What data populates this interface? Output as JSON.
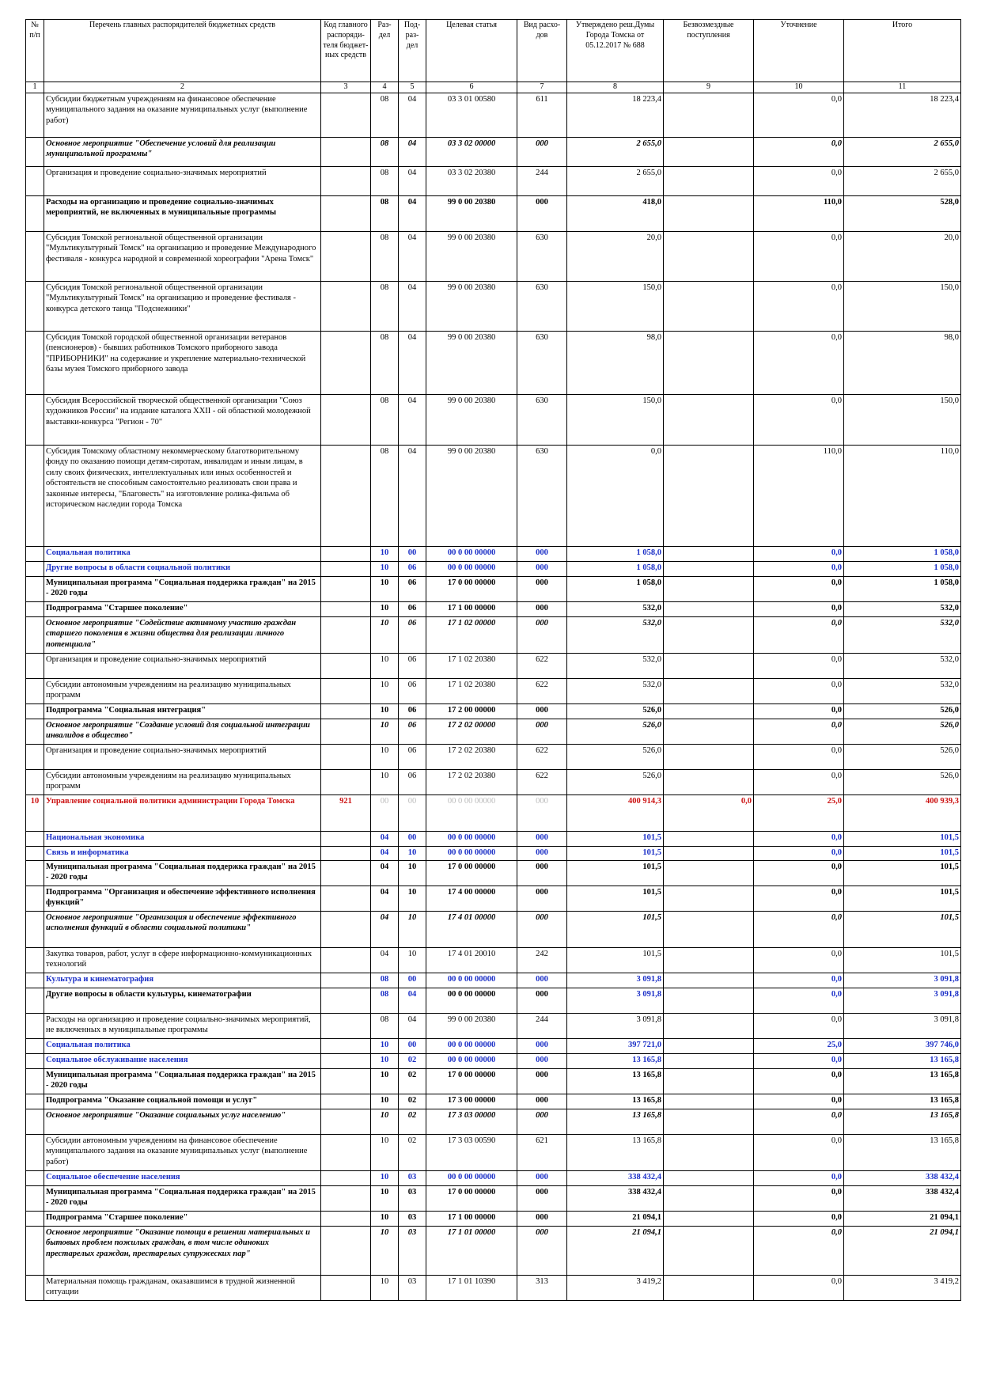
{
  "header": {
    "col1": "№ п/п",
    "col2": "Перечень главных распорядителей бюджетных средств",
    "col3": "Код главного распоряди-теля бюджет-ных средств",
    "col4": "Раз-дел",
    "col5": "Под-раз-дел",
    "col6": "Целевая статья",
    "col7": "Вид расхо-дов",
    "col8": "Утверждено реш.Думы Города Томска от 05.12.2017 № 688",
    "col9": "Безвозмездные поступления",
    "col10": "Уточнение",
    "col11": "Итого"
  },
  "col_numbers": [
    "1",
    "2",
    "3",
    "4",
    "5",
    "6",
    "7",
    "8",
    "9",
    "10",
    "11"
  ],
  "rows": [
    {
      "style": "normal",
      "h": 56,
      "num": "",
      "name": "Субсидии бюджетным учреждениям на финансовое обеспечение муниципального задания на оказание муниципальных услуг (выполнение работ)",
      "code": "",
      "razdel": "08",
      "podrazdel": "04",
      "cs": "03 3 01 00580",
      "vr": "611",
      "approved": "18 223,4",
      "free": "",
      "correction": "0,0",
      "total": "18 223,4"
    },
    {
      "style": "bolditalic",
      "h": 37,
      "num": "",
      "name": "Основное мероприятие \"Обеспечение условий для реализации муниципальной программы\"",
      "code": "",
      "razdel": "08",
      "podrazdel": "04",
      "cs": "03 3 02 00000",
      "vr": "000",
      "approved": "2 655,0",
      "free": "",
      "correction": "0,0",
      "total": "2 655,0"
    },
    {
      "style": "normal",
      "h": 37,
      "num": "",
      "name": "Организация и проведение социально-значимых мероприятий",
      "code": "",
      "razdel": "08",
      "podrazdel": "04",
      "cs": "03 3 02 20380",
      "vr": "244",
      "approved": "2 655,0",
      "free": "",
      "correction": "0,0",
      "total": "2 655,0"
    },
    {
      "style": "bold",
      "h": 45,
      "num": "",
      "name": "Расходы на организацию и проведение социально-значимых мероприятий, не включенных в муниципальные программы",
      "code": "",
      "razdel": "08",
      "podrazdel": "04",
      "cs": "99 0 00 20380",
      "vr": "000",
      "approved": "418,0",
      "free": "",
      "correction": "110,0",
      "total": "528,0"
    },
    {
      "style": "normal",
      "h": 63,
      "num": "",
      "name": "Субсидия Томской региональной общественной организации \"Мультикультурный Томск\" на организацию и проведение Международного фестиваля - конкурса народной и современной хореографии \"Арена Томск\"",
      "code": "",
      "razdel": "08",
      "podrazdel": "04",
      "cs": "99 0 00 20380",
      "vr": "630",
      "approved": "20,0",
      "free": "",
      "correction": "0,0",
      "total": "20,0"
    },
    {
      "style": "normal",
      "h": 63,
      "num": "",
      "name": "Субсидия Томской региональной общественной организации \"Мультикультурный Томск\" на организацию и проведение фестиваля - конкурса детского танца \"Подснежники\"",
      "code": "",
      "razdel": "08",
      "podrazdel": "04",
      "cs": "99 0 00 20380",
      "vr": "630",
      "approved": "150,0",
      "free": "",
      "correction": "0,0",
      "total": "150,0"
    },
    {
      "style": "normal",
      "h": 80,
      "num": "",
      "name": "Субсидия Томской городской общественной организации ветеранов (пенсионеров) - бывших работников Томского приборного завода \"ПРИБОРНИКИ\" на содержание и укрепление материально-технической базы музея Томского приборного завода",
      "code": "",
      "razdel": "08",
      "podrazdel": "04",
      "cs": "99 0 00 20380",
      "vr": "630",
      "approved": "98,0",
      "free": "",
      "correction": "0,0",
      "total": "98,0"
    },
    {
      "style": "normal",
      "h": 64,
      "num": "",
      "name": "Субсидия Всероссийской творческой общественной организации \"Союз художников России\" на издание каталога XXII - ой областной молодежной выставки-конкурса \"Регион - 70\"",
      "code": "",
      "razdel": "08",
      "podrazdel": "04",
      "cs": "99 0 00 20380",
      "vr": "630",
      "approved": "150,0",
      "free": "",
      "correction": "0,0",
      "total": "150,0"
    },
    {
      "style": "normal",
      "h": 128,
      "num": "",
      "name": "Субсидия Томскому областному некоммерческому благотворительному фонду по оказанию помощи детям-сиротам, инвалидам и иным лицам, в силу своих физических, интеллектуальных или иных особенностей и обстоятельств не способным самостоятельно реализовать свои права и законные интересы, \"Благовесть\" на изготовление ролика-фильма об историческом наследии города Томска",
      "code": "",
      "razdel": "08",
      "podrazdel": "04",
      "cs": "99 0 00 20380",
      "vr": "630",
      "approved": "0,0",
      "free": "",
      "correction": "110,0",
      "total": "110,0"
    },
    {
      "style": "blue",
      "h": 19,
      "num": "",
      "name": "Социальная политика",
      "code": "",
      "razdel": "10",
      "podrazdel": "00",
      "cs": "00 0 00 00000",
      "vr": "000",
      "approved": "1 058,0",
      "free": "",
      "correction": "0,0",
      "total": "1 058,0"
    },
    {
      "style": "blue",
      "h": 19,
      "num": "",
      "name": "Другие вопросы в области социальной политики",
      "code": "",
      "razdel": "10",
      "podrazdel": "06",
      "cs": "00 0 00 00000",
      "vr": "000",
      "approved": "1 058,0",
      "free": "",
      "correction": "0,0",
      "total": "1 058,0"
    },
    {
      "style": "bold boldbig",
      "h": 32,
      "num": "",
      "name": "Муниципальная программа \"Социальная поддержка граждан\" на 2015 - 2020 годы",
      "code": "",
      "razdel": "10",
      "podrazdel": "06",
      "cs": "17 0 00 00000",
      "vr": "000",
      "approved": "1 058,0",
      "free": "",
      "correction": "0,0",
      "total": "1 058,0"
    },
    {
      "style": "bold boldbig",
      "h": 19,
      "num": "",
      "name": "Подпрограмма \"Старшее поколение\"",
      "code": "",
      "razdel": "10",
      "podrazdel": "06",
      "cs": "17 1 00 00000",
      "vr": "000",
      "approved": "532,0",
      "free": "",
      "correction": "0,0",
      "total": "532,0"
    },
    {
      "style": "bolditalic",
      "h": 46,
      "num": "",
      "name": "Основное мероприятие \"Содействие активному участию граждан старшего поколения в жизни общества для реализации личного потенциала\"",
      "code": "",
      "razdel": "10",
      "podrazdel": "06",
      "cs": "17 1 02 00000",
      "vr": "000",
      "approved": "532,0",
      "free": "",
      "correction": "0,0",
      "total": "532,0"
    },
    {
      "style": "normal",
      "h": 32,
      "num": "",
      "name": "Организация и проведение социально-значимых мероприятий",
      "code": "",
      "razdel": "10",
      "podrazdel": "06",
      "cs": "17 1 02 20380",
      "vr": "622",
      "approved": "532,0",
      "free": "",
      "correction": "0,0",
      "total": "532,0"
    },
    {
      "style": "normal",
      "h": 32,
      "num": "",
      "name": "Субсидии автономным учреждениям на реализацию муниципальных программ",
      "code": "",
      "razdel": "10",
      "podrazdel": "06",
      "cs": "17 1 02 20380",
      "vr": "622",
      "approved": "532,0",
      "free": "",
      "correction": "0,0",
      "total": "532,0"
    },
    {
      "style": "bold boldbig",
      "h": 19,
      "num": "",
      "name": "Подпрограмма \"Социальная интеграция\"",
      "code": "",
      "razdel": "10",
      "podrazdel": "06",
      "cs": "17 2 00 00000",
      "vr": "000",
      "approved": "526,0",
      "free": "",
      "correction": "0,0",
      "total": "526,0"
    },
    {
      "style": "bolditalic",
      "h": 32,
      "num": "",
      "name": "Основное мероприятие \"Создание условий для социальной интеграции инвалидов в общество\"",
      "code": "",
      "razdel": "10",
      "podrazdel": "06",
      "cs": "17 2 02 00000",
      "vr": "000",
      "approved": "526,0",
      "free": "",
      "correction": "0,0",
      "total": "526,0"
    },
    {
      "style": "normal",
      "h": 32,
      "num": "",
      "name": "Организация и проведение социально-значимых мероприятий",
      "code": "",
      "razdel": "10",
      "podrazdel": "06",
      "cs": "17 2 02 20380",
      "vr": "622",
      "approved": "526,0",
      "free": "",
      "correction": "0,0",
      "total": "526,0"
    },
    {
      "style": "normal",
      "h": 32,
      "num": "",
      "name": "Субсидии автономным учреждениям на реализацию муниципальных программ",
      "code": "",
      "razdel": "10",
      "podrazdel": "06",
      "cs": "17 2 02 20380",
      "vr": "622",
      "approved": "526,0",
      "free": "",
      "correction": "0,0",
      "total": "526,0"
    },
    {
      "style": "red",
      "h": 46,
      "num": "10",
      "name": "Управление социальной политики администрации Города Томска",
      "code": "921",
      "razdel": "00",
      "podrazdel": "00",
      "cs": "00 0 00 00000",
      "vr": "000",
      "approved": "400 914,3",
      "free": "0,0",
      "correction": "25,0",
      "total": "400 939,3"
    },
    {
      "style": "blue",
      "h": 19,
      "num": "",
      "name": "Национальная экономика",
      "code": "",
      "razdel": "04",
      "podrazdel": "00",
      "cs": "00 0 00 00000",
      "vr": "000",
      "approved": "101,5",
      "free": "",
      "correction": "0,0",
      "total": "101,5"
    },
    {
      "style": "blue bluesmall",
      "h": 18,
      "num": "",
      "name": "Связь и информатика",
      "code": "",
      "razdel": "04",
      "podrazdel": "10",
      "cs": "00 0 00 00000",
      "vr": "000",
      "approved": "101,5",
      "free": "",
      "correction": "0,0",
      "total": "101,5"
    },
    {
      "style": "bold",
      "h": 32,
      "num": "",
      "name": "Муниципальная программа \"Социальная поддержка граждан\" на 2015 - 2020 годы",
      "code": "",
      "razdel": "04",
      "podrazdel": "10",
      "cs": "17 0 00 00000",
      "vr": "000",
      "approved": "101,5",
      "free": "",
      "correction": "0,0",
      "total": "101,5"
    },
    {
      "style": "bold",
      "h": 32,
      "num": "",
      "name": "Подпрограмма \"Организация и обеспечение эффективного исполнения функций\"",
      "code": "",
      "razdel": "04",
      "podrazdel": "10",
      "cs": "17 4 00 00000",
      "vr": "000",
      "approved": "101,5",
      "free": "",
      "correction": "0,0",
      "total": "101,5"
    },
    {
      "style": "bolditalic",
      "h": 46,
      "num": "",
      "name": "Основное мероприятие \"Организация и обеспечение эффективного исполнения функций в области социальной политики\"",
      "code": "",
      "razdel": "04",
      "podrazdel": "10",
      "cs": "17 4 01 00000",
      "vr": "000",
      "approved": "101,5",
      "free": "",
      "correction": "0,0",
      "total": "101,5"
    },
    {
      "style": "normal",
      "h": 32,
      "num": "",
      "name": "Закупка товаров, работ, услуг в сфере информационно-коммуникационных технологий",
      "code": "",
      "razdel": "04",
      "podrazdel": "10",
      "cs": "17 4 01 20010",
      "vr": "242",
      "approved": "101,5",
      "free": "",
      "correction": "0,0",
      "total": "101,5"
    },
    {
      "style": "blue",
      "h": 19,
      "num": "",
      "name": "Культура и кинематография",
      "code": "",
      "razdel": "08",
      "podrazdel": "00",
      "cs": "00 0 00 00000",
      "vr": "000",
      "approved": "3 091,8",
      "free": "",
      "correction": "0,0",
      "total": "3 091,8"
    },
    {
      "style": "bold boldbig bluenums",
      "h": 32,
      "num": "",
      "name": "Другие вопросы в области культуры, кинематографии",
      "code": "",
      "razdel": "08",
      "podrazdel": "04",
      "cs": "00 0 00 00000",
      "vr": "000",
      "approved": "3 091,8",
      "free": "",
      "correction": "0,0",
      "total": "3 091,8"
    },
    {
      "style": "normal",
      "h": 32,
      "num": "",
      "name": "Расходы на организацию и проведение социально-значимых мероприятий, не включенных в муниципальные программы",
      "code": "",
      "razdel": "08",
      "podrazdel": "04",
      "cs": "99 0 00 20380",
      "vr": "244",
      "approved": "3 091,8",
      "free": "",
      "correction": "0,0",
      "total": "3 091,8"
    },
    {
      "style": "blue",
      "h": 19,
      "num": "",
      "name": "Социальная политика",
      "code": "",
      "razdel": "10",
      "podrazdel": "00",
      "cs": "00 0 00 00000",
      "vr": "000",
      "approved": "397 721,0",
      "free": "",
      "correction": "25,0",
      "total": "397 746,0"
    },
    {
      "style": "blue",
      "h": 19,
      "num": "",
      "name": "Социальное обслуживание населения",
      "code": "",
      "razdel": "10",
      "podrazdel": "02",
      "cs": "00 0 00 00000",
      "vr": "000",
      "approved": "13 165,8",
      "free": "",
      "correction": "0,0",
      "total": "13 165,8"
    },
    {
      "style": "bold boldbig",
      "h": 32,
      "num": "",
      "name": "Муниципальная программа \"Социальная поддержка граждан\" на 2015 - 2020 годы",
      "code": "",
      "razdel": "10",
      "podrazdel": "02",
      "cs": "17 0 00 00000",
      "vr": "000",
      "approved": "13 165,8",
      "free": "",
      "correction": "0,0",
      "total": "13 165,8"
    },
    {
      "style": "bold",
      "h": 19,
      "num": "",
      "name": "Подпрограмма \"Оказание социальной помощи и услуг\"",
      "code": "",
      "razdel": "10",
      "podrazdel": "02",
      "cs": "17 3 00 00000",
      "vr": "000",
      "approved": "13 165,8",
      "free": "",
      "correction": "0,0",
      "total": "13 165,8"
    },
    {
      "style": "bolditalic",
      "h": 32,
      "num": "",
      "name": "Основное мероприятие \"Оказание социальных услуг населению\"",
      "code": "",
      "razdel": "10",
      "podrazdel": "02",
      "cs": "17 3 03 00000",
      "vr": "000",
      "approved": "13 165,8",
      "free": "",
      "correction": "0,0",
      "total": "13 165,8"
    },
    {
      "style": "normal",
      "h": 46,
      "num": "",
      "name": "Субсидии автономным учреждениям на финансовое обеспечение муниципального задания на оказание муниципальных услуг (выполнение работ)",
      "code": "",
      "razdel": "10",
      "podrazdel": "02",
      "cs": "17 3 03 00590",
      "vr": "621",
      "approved": "13 165,8",
      "free": "",
      "correction": "0,0",
      "total": "13 165,8"
    },
    {
      "style": "blue",
      "h": 19,
      "num": "",
      "name": "Социальное обеспечение населения",
      "code": "",
      "razdel": "10",
      "podrazdel": "03",
      "cs": "00 0 00 00000",
      "vr": "000",
      "approved": "338 432,4",
      "free": "",
      "correction": "0,0",
      "total": "338 432,4"
    },
    {
      "style": "bold boldbig",
      "h": 32,
      "num": "",
      "name": "Муниципальная программа \"Социальная поддержка граждан\" на 2015 - 2020 годы",
      "code": "",
      "razdel": "10",
      "podrazdel": "03",
      "cs": "17 0 00 00000",
      "vr": "000",
      "approved": "338 432,4",
      "free": "",
      "correction": "0,0",
      "total": "338 432,4"
    },
    {
      "style": "bold",
      "h": 19,
      "num": "",
      "name": "Подпрограмма \"Старшее поколение\"",
      "code": "",
      "razdel": "10",
      "podrazdel": "03",
      "cs": "17 1 00 00000",
      "vr": "000",
      "approved": "21 094,1",
      "free": "",
      "correction": "0,0",
      "total": "21 094,1"
    },
    {
      "style": "bolditalic",
      "h": 62,
      "num": "",
      "name": "Основное мероприятие \"Оказание помощи в решении материальных и бытовых проблем пожилых граждан, в том числе одиноких престарелых граждан, престарелых супружеских пар\"",
      "code": "",
      "razdel": "10",
      "podrazdel": "03",
      "cs": "17 1 01 00000",
      "vr": "000",
      "approved": "21 094,1",
      "free": "",
      "correction": "0,0",
      "total": "21 094,1"
    },
    {
      "style": "normal",
      "h": 32,
      "num": "",
      "name": "Материальная помощь гражданам, оказавшимся в трудной жизненной ситуации",
      "code": "",
      "razdel": "10",
      "podrazdel": "03",
      "cs": "17 1 01 10390",
      "vr": "313",
      "approved": "3 419,2",
      "free": "",
      "correction": "0,0",
      "total": "3 419,2"
    }
  ]
}
